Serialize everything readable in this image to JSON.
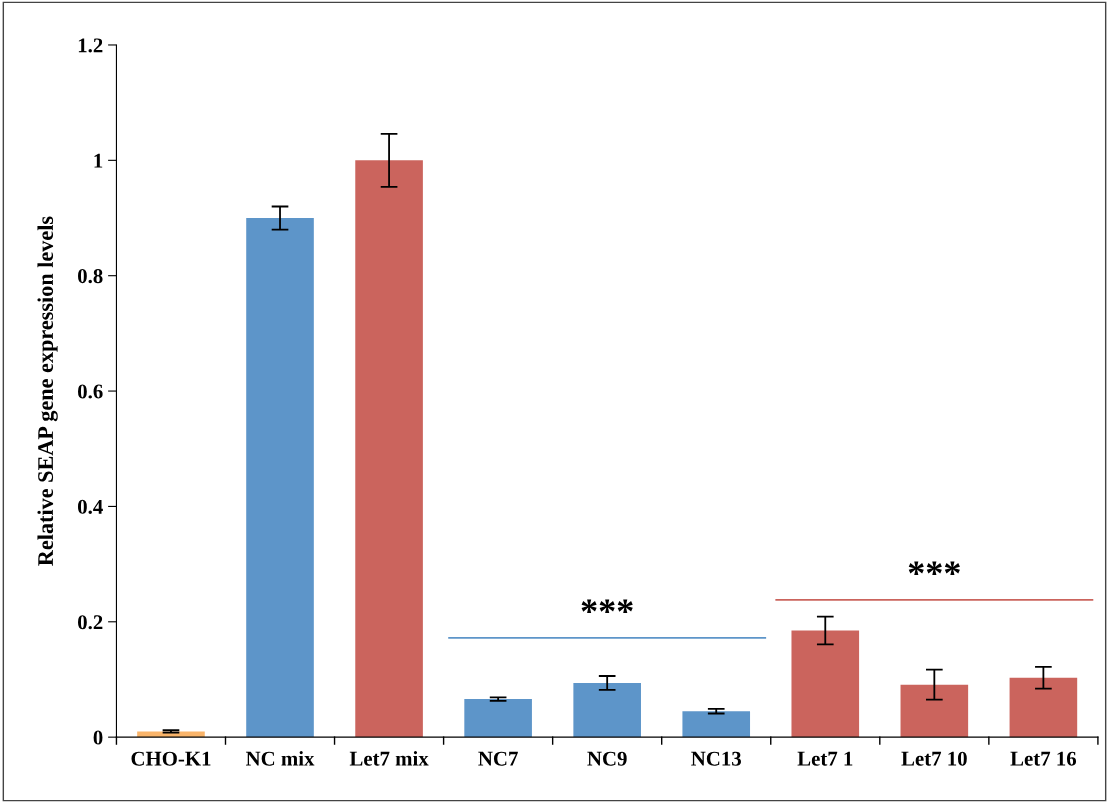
{
  "chart_data": {
    "type": "bar",
    "ylabel": "Relative SEAP gene expression levels",
    "categories": [
      "CHO-K1",
      "NC mix",
      "Let7 mix",
      "NC7",
      "NC9",
      "NC13",
      "Let7 1",
      "Let7 10",
      "Let7 16"
    ],
    "values": [
      0.01,
      0.9,
      1.0,
      0.066,
      0.094,
      0.045,
      0.185,
      0.091,
      0.103
    ],
    "errors": [
      0.002,
      0.02,
      0.046,
      0.003,
      0.012,
      0.004,
      0.024,
      0.026,
      0.019
    ],
    "colors": [
      "#f9b46a",
      "#5d95c9",
      "#cb645d",
      "#5d95c9",
      "#5d95c9",
      "#5d95c9",
      "#cb645d",
      "#cb645d",
      "#cb645d"
    ],
    "ylim": [
      0,
      1.2
    ],
    "yticks": [
      {
        "value": 0,
        "label": "0"
      },
      0.2,
      0.4,
      0.6,
      0.8,
      {
        "value": 1,
        "label": "1"
      },
      1.2
    ],
    "grid": false,
    "annotations": [
      "***",
      "***"
    ]
  }
}
